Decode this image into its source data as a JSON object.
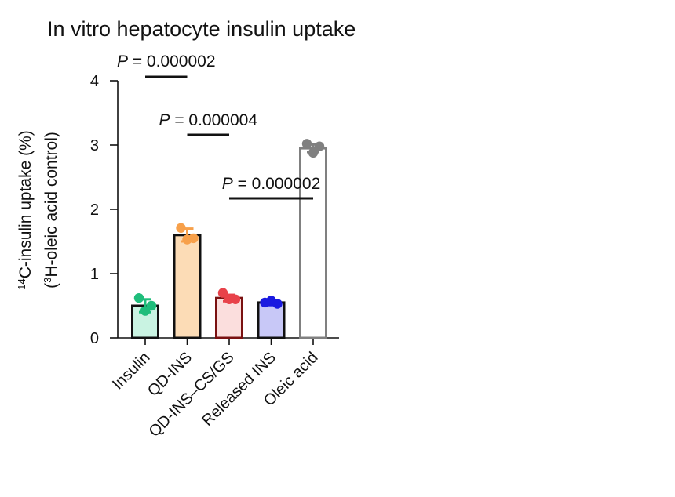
{
  "chart_data": {
    "type": "bar",
    "title": "In vitro hepatocyte insulin uptake",
    "ylabel_line1": "14C-insulin uptake (%)",
    "ylabel_line2": "(3H-oleic acid control)",
    "ylim": [
      0,
      4
    ],
    "yticks": [
      0,
      1,
      2,
      3,
      4
    ],
    "grid": false,
    "categories": [
      "Insulin",
      "QD-INS",
      "QD-INS–CS/GS",
      "Released INS",
      "Oleic acid"
    ],
    "values": [
      0.5,
      1.6,
      0.62,
      0.55,
      2.95
    ],
    "errors": [
      0.1,
      0.1,
      0.05,
      0.04,
      0.06
    ],
    "points": [
      [
        0.62,
        0.42,
        0.5
      ],
      [
        1.71,
        1.53,
        1.55
      ],
      [
        0.7,
        0.6,
        0.6
      ],
      [
        0.55,
        0.58,
        0.53
      ],
      [
        3.02,
        2.88,
        2.98
      ]
    ],
    "colors": {
      "fill": [
        "#c9f3e2",
        "#fcdcb6",
        "#fbdedd",
        "#c8c8f7",
        "#ffffff"
      ],
      "border": [
        "#111111",
        "#111111",
        "#7a1111",
        "#111111",
        "#808080"
      ],
      "points": [
        "#1fbd7b",
        "#f7a04a",
        "#e8424a",
        "#1a1ae0",
        "#808080"
      ]
    },
    "comparisons": [
      {
        "from": 0,
        "to": 1,
        "label": "P = 0.000002"
      },
      {
        "from": 1,
        "to": 2,
        "label": "P = 0.000004"
      },
      {
        "from": 2,
        "to": 4,
        "label": "P = 0.000002"
      }
    ]
  }
}
